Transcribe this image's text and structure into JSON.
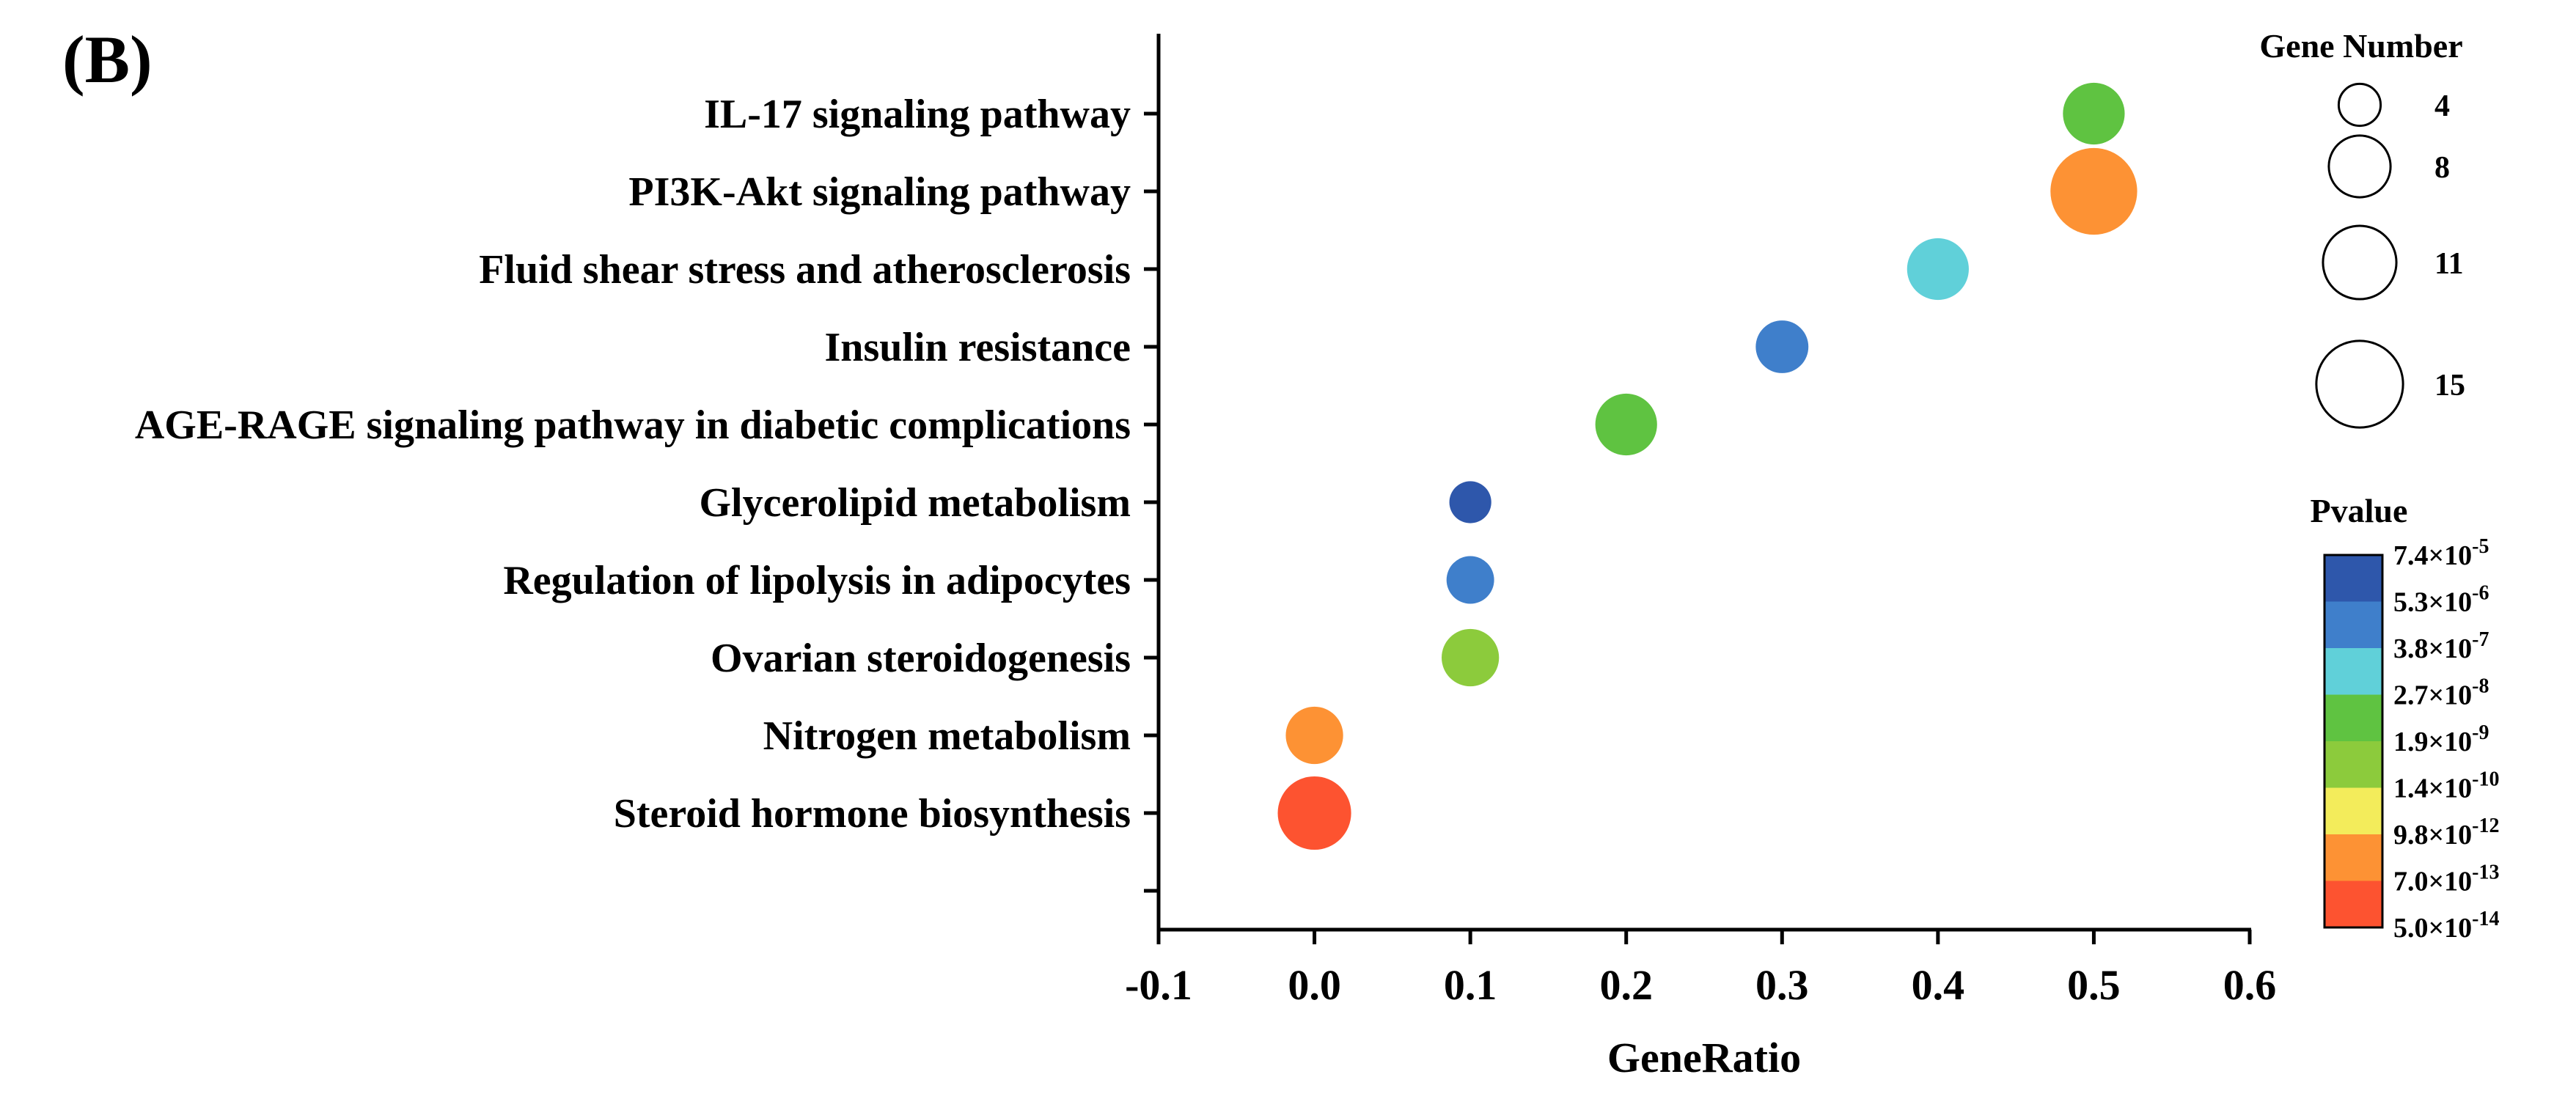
{
  "panel_label": "(B)",
  "chart_data": {
    "type": "scatter",
    "subtype": "bubble",
    "xlabel": "GeneRatio",
    "ylabel": "",
    "xlim": [
      -0.1,
      0.6
    ],
    "xticks": [
      -0.1,
      0.0,
      0.1,
      0.2,
      0.3,
      0.4,
      0.5,
      0.6
    ],
    "xtick_labels": [
      "-0.1",
      "0.0",
      "0.1",
      "0.2",
      "0.3",
      "0.4",
      "0.5",
      "0.6"
    ],
    "grid": false,
    "categories": [
      "IL-17 signaling pathway",
      "PI3K-Akt signaling pathway",
      "Fluid shear stress and atherosclerosis",
      "Insulin resistance",
      "AGE-RAGE signaling pathway in diabetic complications",
      "Glycerolipid metabolism",
      "Regulation of lipolysis in adipocytes",
      "Ovarian steroidogenesis",
      "Nitrogen metabolism",
      "Steroid hormone biosynthesis"
    ],
    "points": [
      {
        "term": "IL-17 signaling pathway",
        "x": 0.5,
        "gene_number": 8,
        "color": "#5fc341"
      },
      {
        "term": "PI3K-Akt signaling pathway",
        "x": 0.5,
        "gene_number": 15,
        "color": "#fd9234"
      },
      {
        "term": "Fluid shear stress and atherosclerosis",
        "x": 0.4,
        "gene_number": 8,
        "color": "#60d0d9"
      },
      {
        "term": "Insulin resistance",
        "x": 0.3,
        "gene_number": 6,
        "color": "#3f7fcb"
      },
      {
        "term": "AGE-RAGE signaling pathway in diabetic complications",
        "x": 0.2,
        "gene_number": 8,
        "color": "#5fc341"
      },
      {
        "term": "Glycerolipid metabolism",
        "x": 0.1,
        "gene_number": 4,
        "color": "#2e57ab"
      },
      {
        "term": "Regulation of lipolysis in adipocytes",
        "x": 0.1,
        "gene_number": 5,
        "color": "#3f7fcb"
      },
      {
        "term": "Ovarian steroidogenesis",
        "x": 0.1,
        "gene_number": 7,
        "color": "#8ccb3c"
      },
      {
        "term": "Nitrogen metabolism",
        "x": 0.0,
        "gene_number": 7,
        "color": "#fd9234"
      },
      {
        "term": "Steroid hormone biosynthesis",
        "x": 0.0,
        "gene_number": 11,
        "color": "#fd5330"
      }
    ],
    "size_legend": {
      "title": "Gene Number",
      "values": [
        4,
        8,
        11,
        15
      ],
      "labels": [
        "4",
        "8",
        "11",
        "15"
      ]
    },
    "color_legend": {
      "title": "Pvalue",
      "bins": [
        "#2e57ab",
        "#3f7fcb",
        "#60d0d9",
        "#5fc341",
        "#8ccb3c",
        "#f3ec5b",
        "#fd9234",
        "#fd5330"
      ],
      "ticks": [
        {
          "mantissa": "7.4",
          "times": "×",
          "base": "10",
          "exp": "-5"
        },
        {
          "mantissa": "5.3",
          "times": "×",
          "base": "10",
          "exp": "-6"
        },
        {
          "mantissa": "3.8",
          "times": "×",
          "base": "10",
          "exp": "-7"
        },
        {
          "mantissa": "2.7",
          "times": "×",
          "base": "10",
          "exp": "-8"
        },
        {
          "mantissa": "1.9",
          "times": "×",
          "base": "10",
          "exp": "-9"
        },
        {
          "mantissa": "1.4",
          "times": "×",
          "base": "10",
          "exp": "-10"
        },
        {
          "mantissa": "9.8",
          "times": "×",
          "base": "10",
          "exp": "-12"
        },
        {
          "mantissa": "7.0",
          "times": "×",
          "base": "10",
          "exp": "-13"
        },
        {
          "mantissa": "5.0",
          "times": "×",
          "base": "10",
          "exp": "-14"
        }
      ]
    }
  }
}
